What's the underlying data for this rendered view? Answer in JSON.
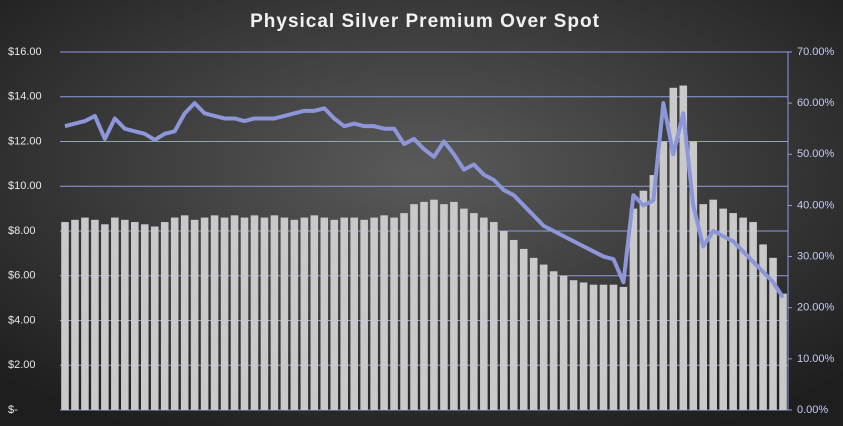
{
  "chart_data": {
    "type": "bar_line",
    "title": "Physical Silver Premium Over Spot",
    "categories": [
      null,
      null,
      null,
      null,
      null,
      null,
      null,
      null,
      null,
      null,
      null,
      null,
      null,
      null,
      null,
      null,
      null,
      null,
      null,
      null,
      null,
      null,
      null,
      null,
      null,
      null,
      null,
      null,
      null,
      null,
      null,
      null,
      null,
      null,
      null,
      null,
      null,
      null,
      null,
      null,
      null,
      null,
      null,
      null,
      null,
      null,
      null,
      null,
      null,
      null,
      null,
      null,
      null,
      null,
      null,
      null,
      null,
      null,
      null,
      null,
      null,
      null,
      null,
      null,
      null,
      null,
      null,
      null,
      null,
      null,
      null,
      null,
      null
    ],
    "series": [
      {
        "type": "bar",
        "color": "#c9c9c9",
        "values": [
          8.4,
          8.5,
          8.6,
          8.5,
          8.3,
          8.6,
          8.5,
          8.4,
          8.3,
          8.2,
          8.4,
          8.6,
          8.7,
          8.5,
          8.6,
          8.7,
          8.6,
          8.7,
          8.6,
          8.7,
          8.6,
          8.7,
          8.6,
          8.5,
          8.6,
          8.7,
          8.6,
          8.5,
          8.6,
          8.6,
          8.5,
          8.6,
          8.7,
          8.6,
          8.8,
          9.2,
          9.3,
          9.4,
          9.2,
          9.3,
          9.0,
          8.8,
          8.6,
          8.4,
          8.0,
          7.6,
          7.2,
          6.8,
          6.5,
          6.2,
          6.0,
          5.8,
          5.7,
          5.6,
          5.6,
          5.6,
          5.5,
          9.0,
          9.8,
          10.5,
          12.0,
          14.4,
          14.5,
          12.0,
          9.2,
          9.4,
          9.0,
          8.8,
          8.6,
          8.4,
          7.4,
          6.8,
          5.2
        ]
      },
      {
        "type": "line",
        "axis": "y2",
        "color": "#8c96d8",
        "values": [
          55.5,
          56,
          56.5,
          57.5,
          53,
          57,
          55,
          54.5,
          54,
          52.8,
          54,
          54.5,
          58,
          60,
          58,
          57.5,
          57,
          57,
          56.5,
          57,
          57,
          57,
          57.5,
          58,
          58.5,
          58.5,
          59,
          57,
          55.5,
          56,
          55.5,
          55.5,
          55,
          55,
          52,
          53,
          51,
          49.5,
          52.5,
          50,
          47,
          48,
          46,
          45,
          43,
          42,
          40,
          38,
          36,
          35,
          34,
          33,
          32,
          31,
          30,
          29.5,
          25,
          42,
          40,
          41,
          60,
          50,
          58,
          40,
          32,
          35,
          34,
          33,
          31,
          29,
          27,
          25,
          22
        ]
      }
    ],
    "ylim": [
      0,
      16
    ],
    "yticks": [
      {
        "value": 0,
        "label": "$-"
      },
      {
        "value": 2,
        "label": "$2.00"
      },
      {
        "value": 4,
        "label": "$4.00"
      },
      {
        "value": 6,
        "label": "$6.00"
      },
      {
        "value": 8,
        "label": "$8.00"
      },
      {
        "value": 10,
        "label": "$10.00"
      },
      {
        "value": 12,
        "label": "$12.00"
      },
      {
        "value": 14,
        "label": "$14.00"
      },
      {
        "value": 16,
        "label": "$16.00"
      }
    ],
    "y2lim": [
      0,
      70
    ],
    "y2ticks": [
      {
        "value": 0,
        "label": "0.00%"
      },
      {
        "value": 10,
        "label": "10.00%"
      },
      {
        "value": 20,
        "label": "20.00%"
      },
      {
        "value": 30,
        "label": "30.00%"
      },
      {
        "value": 40,
        "label": "40.00%"
      },
      {
        "value": 50,
        "label": "50.00%"
      },
      {
        "value": 60,
        "label": "60.00%"
      },
      {
        "value": 70,
        "label": "70.00%"
      }
    ],
    "grid": true,
    "grid_color": "#8e9ee0"
  }
}
